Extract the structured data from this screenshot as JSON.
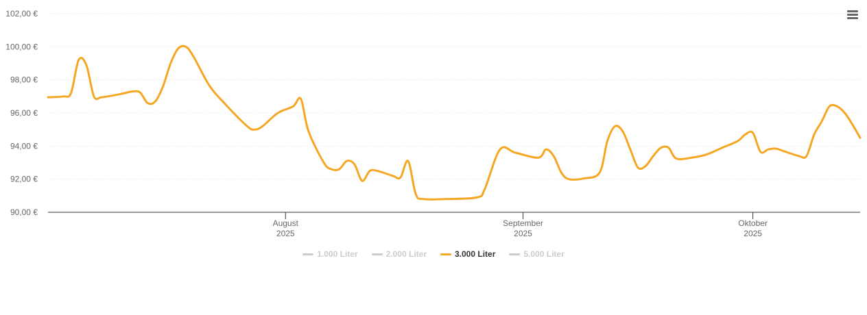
{
  "chart_data": {
    "type": "line",
    "y_axis": {
      "ticks": [
        "102,00 €",
        "100,00 €",
        "98,00 €",
        "96,00 €",
        "94,00 €",
        "92,00 €",
        "90,00 €"
      ],
      "tick_values": [
        102,
        100,
        98,
        96,
        94,
        92,
        90
      ],
      "ylim": [
        90,
        102
      ],
      "grid": true
    },
    "x_axis": {
      "xlim": [
        "2025-07-01",
        "2025-10-15"
      ],
      "ticks": [
        {
          "date": "2025-08-01",
          "month": "August",
          "year": "2025"
        },
        {
          "date": "2025-09-01",
          "month": "September",
          "year": "2025"
        },
        {
          "date": "2025-10-01",
          "month": "Oktober",
          "year": "2025"
        }
      ]
    },
    "series": [
      {
        "name": "1.000 Liter",
        "visible": false,
        "color": "#cccccc",
        "values": []
      },
      {
        "name": "2.000 Liter",
        "visible": false,
        "color": "#cccccc",
        "values": []
      },
      {
        "name": "3.000 Liter",
        "visible": true,
        "color": "#f5a623",
        "values": [
          [
            "2025-07-01",
            96.95
          ],
          [
            "2025-07-03",
            97.0
          ],
          [
            "2025-07-04",
            97.2
          ],
          [
            "2025-07-05",
            99.2
          ],
          [
            "2025-07-06",
            98.9
          ],
          [
            "2025-07-07",
            97.0
          ],
          [
            "2025-07-08",
            96.95
          ],
          [
            "2025-07-10",
            97.1
          ],
          [
            "2025-07-11",
            97.2
          ],
          [
            "2025-07-12",
            97.3
          ],
          [
            "2025-07-13",
            97.25
          ],
          [
            "2025-07-14",
            96.6
          ],
          [
            "2025-07-15",
            96.7
          ],
          [
            "2025-07-16",
            97.6
          ],
          [
            "2025-07-17",
            99.0
          ],
          [
            "2025-07-18",
            99.9
          ],
          [
            "2025-07-19",
            100.0
          ],
          [
            "2025-07-20",
            99.4
          ],
          [
            "2025-07-22",
            97.7
          ],
          [
            "2025-07-24",
            96.6
          ],
          [
            "2025-07-27",
            95.2
          ],
          [
            "2025-07-28",
            95.0
          ],
          [
            "2025-07-29",
            95.2
          ],
          [
            "2025-07-31",
            96.0
          ],
          [
            "2025-08-02",
            96.4
          ],
          [
            "2025-08-03",
            96.85
          ],
          [
            "2025-08-04",
            94.9
          ],
          [
            "2025-08-06",
            93.0
          ],
          [
            "2025-08-07",
            92.6
          ],
          [
            "2025-08-08",
            92.6
          ],
          [
            "2025-08-09",
            93.1
          ],
          [
            "2025-08-10",
            92.9
          ],
          [
            "2025-08-11",
            91.9
          ],
          [
            "2025-08-12",
            92.5
          ],
          [
            "2025-08-13",
            92.5
          ],
          [
            "2025-08-15",
            92.2
          ],
          [
            "2025-08-16",
            92.1
          ],
          [
            "2025-08-17",
            93.1
          ],
          [
            "2025-08-18",
            91.1
          ],
          [
            "2025-08-19",
            90.8
          ],
          [
            "2025-08-22",
            90.8
          ],
          [
            "2025-08-26",
            90.9
          ],
          [
            "2025-08-27",
            91.4
          ],
          [
            "2025-08-29",
            93.8
          ],
          [
            "2025-08-31",
            93.6
          ],
          [
            "2025-09-03",
            93.3
          ],
          [
            "2025-09-04",
            93.8
          ],
          [
            "2025-09-05",
            93.4
          ],
          [
            "2025-09-06",
            92.4
          ],
          [
            "2025-09-07",
            92.0
          ],
          [
            "2025-09-09",
            92.05
          ],
          [
            "2025-09-11",
            92.4
          ],
          [
            "2025-09-12",
            94.3
          ],
          [
            "2025-09-13",
            95.2
          ],
          [
            "2025-09-14",
            94.9
          ],
          [
            "2025-09-15",
            93.8
          ],
          [
            "2025-09-16",
            92.7
          ],
          [
            "2025-09-17",
            92.8
          ],
          [
            "2025-09-18",
            93.4
          ],
          [
            "2025-09-19",
            93.9
          ],
          [
            "2025-09-20",
            93.9
          ],
          [
            "2025-09-21",
            93.25
          ],
          [
            "2025-09-23",
            93.3
          ],
          [
            "2025-09-25",
            93.5
          ],
          [
            "2025-09-27",
            93.9
          ],
          [
            "2025-09-29",
            94.3
          ],
          [
            "2025-09-30",
            94.7
          ],
          [
            "2025-10-01",
            94.8
          ],
          [
            "2025-10-02",
            93.65
          ],
          [
            "2025-10-03",
            93.8
          ],
          [
            "2025-10-04",
            93.85
          ],
          [
            "2025-10-05",
            93.7
          ],
          [
            "2025-10-07",
            93.4
          ],
          [
            "2025-10-08",
            93.4
          ],
          [
            "2025-10-09",
            94.7
          ],
          [
            "2025-10-10",
            95.5
          ],
          [
            "2025-10-11",
            96.4
          ],
          [
            "2025-10-12",
            96.4
          ],
          [
            "2025-10-13",
            96.0
          ],
          [
            "2025-10-14",
            95.3
          ],
          [
            "2025-10-15",
            94.5
          ]
        ]
      }
    ],
    "legend": {
      "position": "bottom-center",
      "items": [
        "1.000 Liter",
        "2.000 Liter",
        "3.000 Liter",
        "5.000 Liter"
      ],
      "active": "3.000 Liter"
    }
  },
  "legend_labels": [
    "1.000 Liter",
    "2.000 Liter",
    "3.000 Liter",
    "5.000 Liter"
  ],
  "colors": {
    "line": "#f5a623",
    "inactive": "#cccccc",
    "axis": "#333333"
  },
  "icons": {
    "menu": "hamburger-menu-icon"
  }
}
